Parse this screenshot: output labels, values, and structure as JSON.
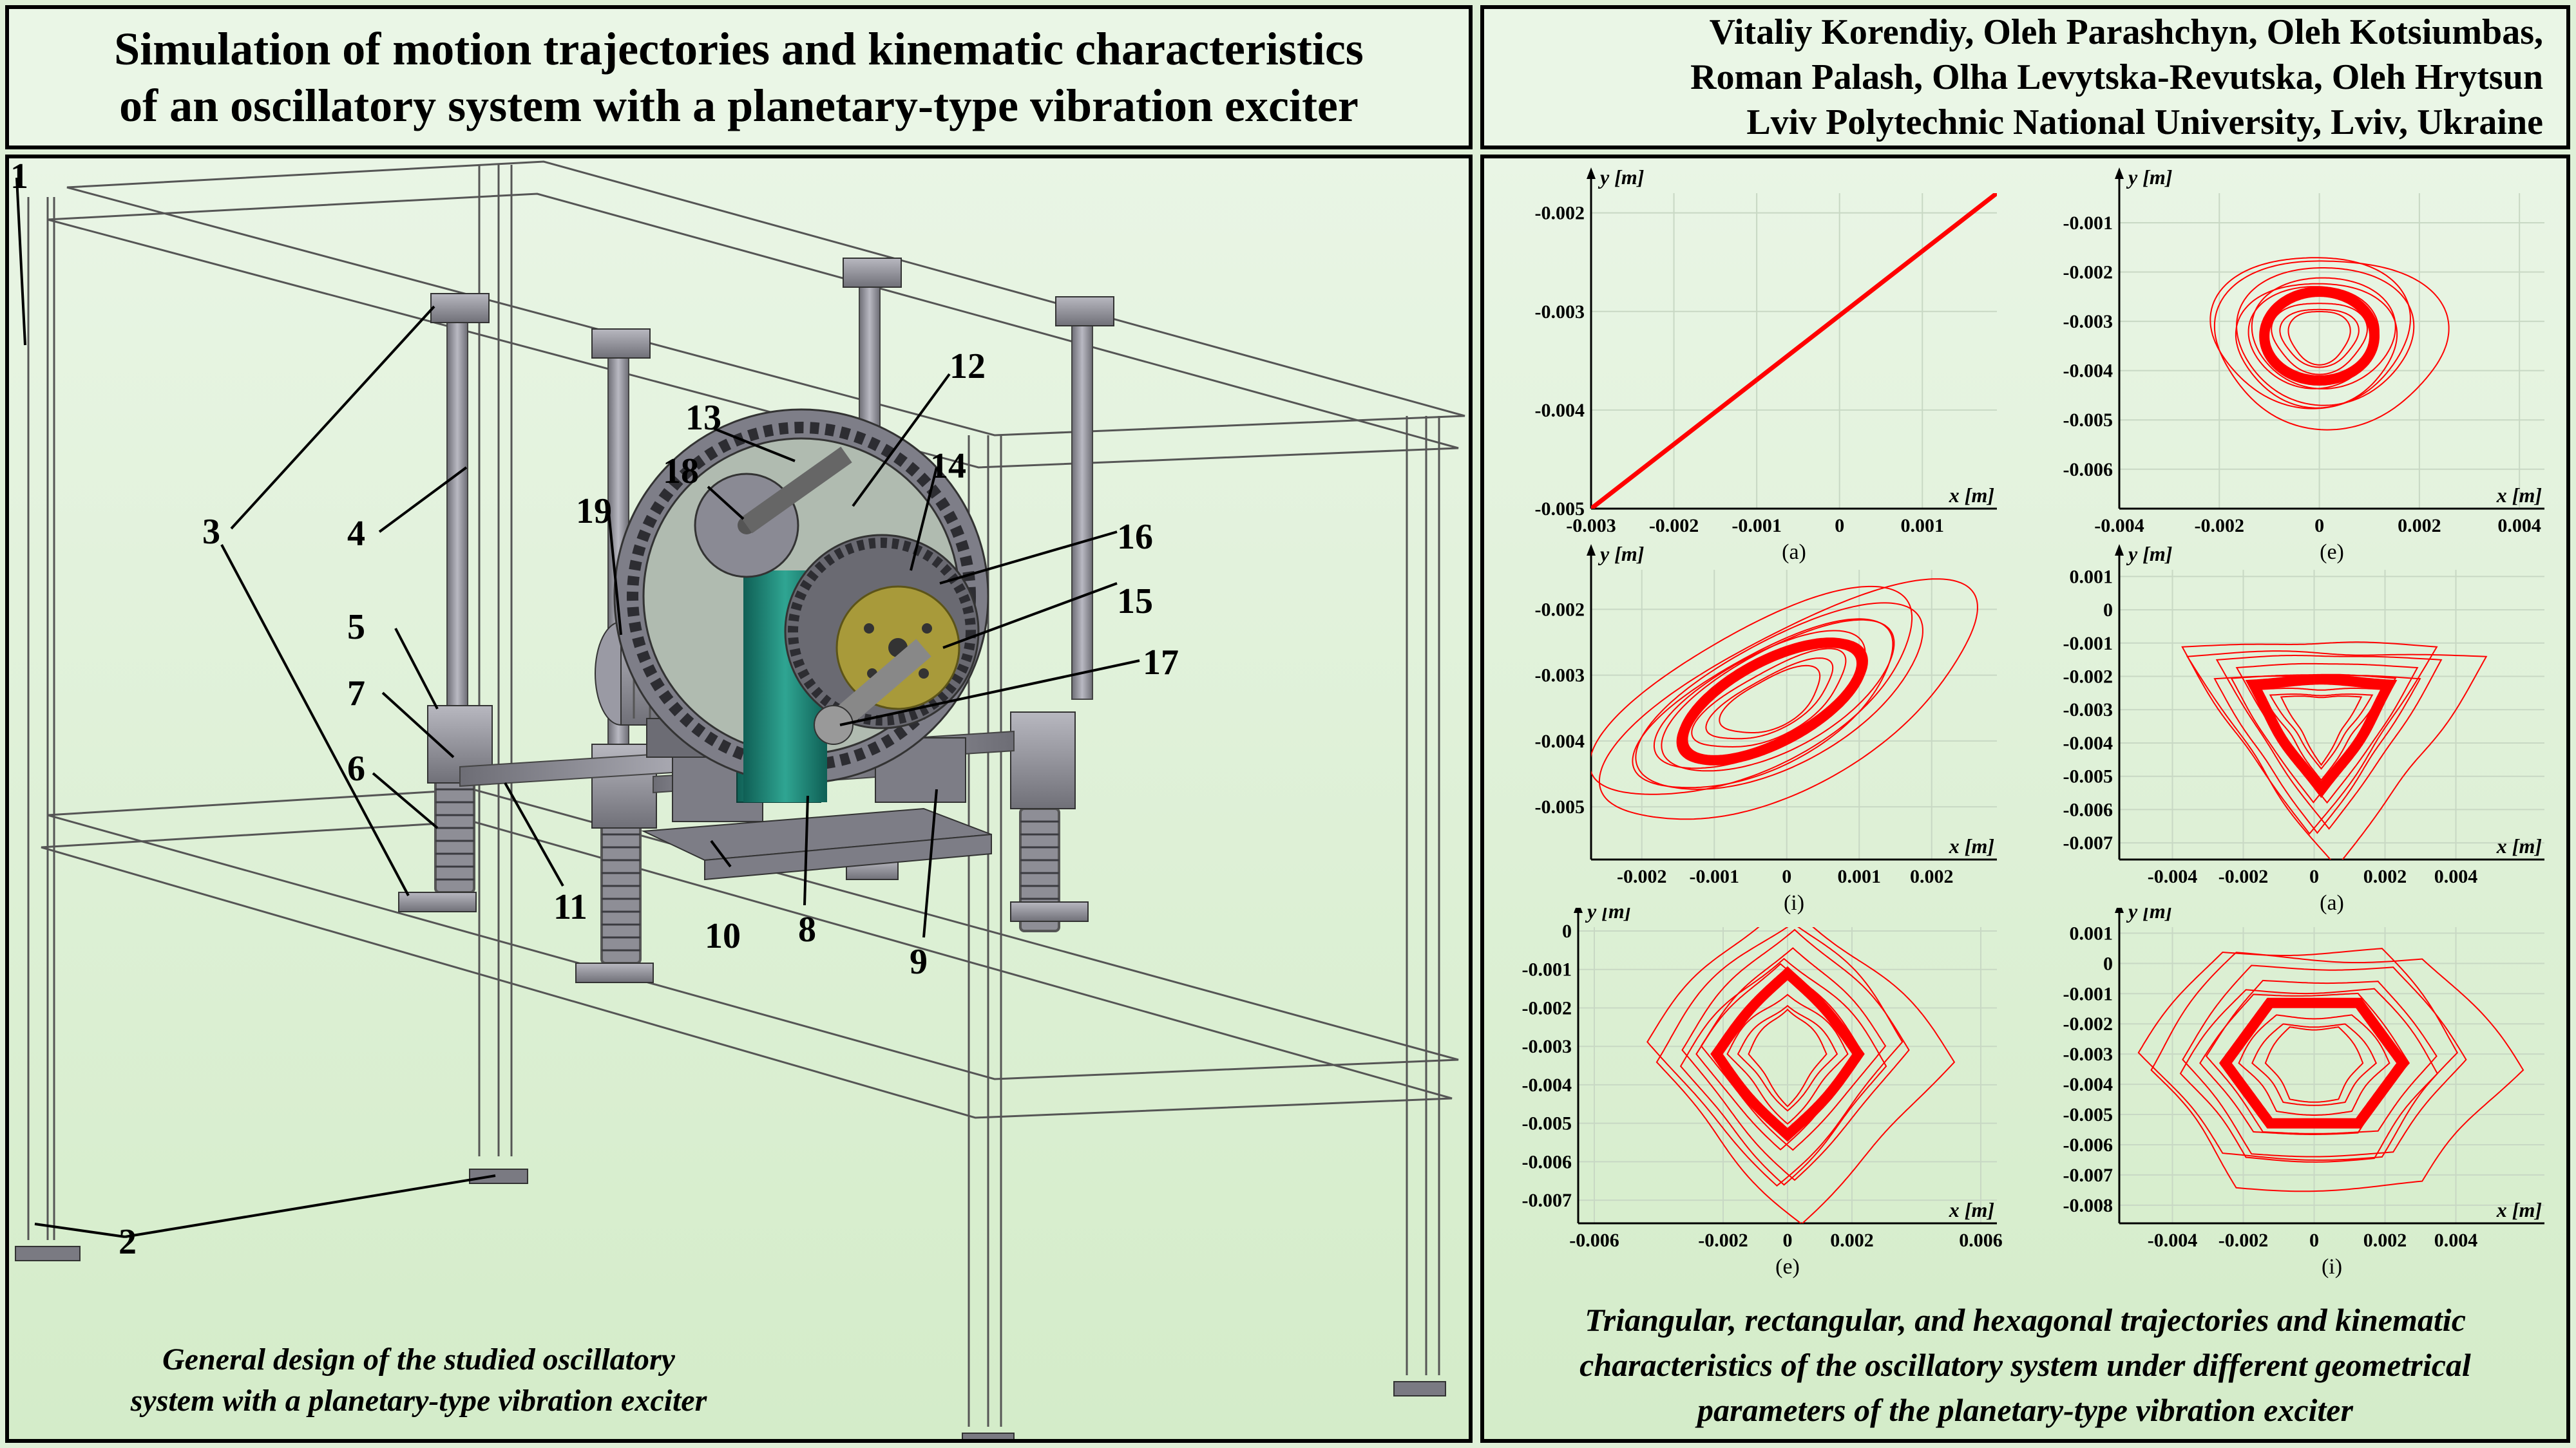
{
  "title": {
    "line1": "Simulation of motion trajectories and kinematic characteristics",
    "line2": "of an oscillatory system with a planetary-type vibration exciter"
  },
  "authors": {
    "line1": "Vitaliy Korendiy, Oleh Parashchyn, Oleh Kotsiumbas,",
    "line2": "Roman Palash, Olha Levytska-Revutska, Oleh Hrytsun",
    "line3": "Lviv Polytechnic National University, Lviv, Ukraine"
  },
  "left_caption": {
    "line1": "General design of the studied oscillatory",
    "line2": "system with a planetary-type vibration exciter"
  },
  "right_caption": {
    "line1": "Triangular, rectangular, and hexagonal trajectories and kinematic",
    "line2": "characteristics of the oscillatory system under different geometrical",
    "line3": "parameters of the planetary-type vibration exciter"
  },
  "callouts": [
    "1",
    "2",
    "3",
    "4",
    "5",
    "6",
    "7",
    "8",
    "9",
    "10",
    "11",
    "12",
    "13",
    "14",
    "15",
    "16",
    "17",
    "18",
    "19"
  ],
  "colors": {
    "trajectory": "#ff0000",
    "grid": "#c8d8c4",
    "frame": "#555555",
    "steel": "#8a8a92",
    "teal": "#1f8a7a",
    "gold": "#a89a3a"
  },
  "chart_data": [
    {
      "type": "line",
      "shape": "line",
      "subfig": "(a)",
      "xlabel": "x [m]",
      "ylabel": "y [m]",
      "xlim": [
        -0.003,
        0.0019
      ],
      "ylim": [
        -0.005,
        -0.0018
      ],
      "xticks": [
        "-0.003",
        "-0.002",
        "-0.001",
        "0",
        "0.001"
      ],
      "yticks": [
        "-0.002",
        "-0.003",
        "-0.004",
        "-0.005"
      ],
      "x": [
        -0.003,
        0.0019
      ],
      "y": [
        -0.005,
        -0.0018
      ]
    },
    {
      "type": "line",
      "shape": "circle",
      "subfig": "(e)",
      "xlabel": "x [m]",
      "ylabel": "y [m]",
      "xlim": [
        -0.004,
        0.0045
      ],
      "ylim": [
        -0.0068,
        -0.0004
      ],
      "xticks": [
        "-0.004",
        "-0.002",
        "0",
        "0.002",
        "0.004"
      ],
      "yticks": [
        "-0.001",
        "-0.002",
        "-0.003",
        "-0.004",
        "-0.005",
        "-0.006"
      ],
      "center": [
        0,
        -0.0033
      ],
      "steady_radius": [
        0.0011,
        0.0009
      ]
    },
    {
      "type": "line",
      "shape": "ellipse",
      "subfig": "(i)",
      "xlabel": "x [m]",
      "ylabel": "y [m]",
      "xlim": [
        -0.0027,
        0.0029
      ],
      "ylim": [
        -0.0058,
        -0.0014
      ],
      "xticks": [
        "-0.002",
        "-0.001",
        "0",
        "0.001",
        "0.002"
      ],
      "yticks": [
        "-0.002",
        "-0.003",
        "-0.004",
        "-0.005"
      ],
      "center": [
        -0.0002,
        -0.0034
      ],
      "steady_radius": [
        0.0014,
        0.0006
      ]
    },
    {
      "type": "line",
      "shape": "triangle",
      "subfig": "(a)",
      "xlabel": "x [m]",
      "ylabel": "y [m]",
      "xlim": [
        -0.0055,
        0.0065
      ],
      "ylim": [
        -0.0075,
        0.0012
      ],
      "xticks": [
        "-0.004",
        "-0.002",
        "0",
        "0.002",
        "0.004"
      ],
      "yticks": [
        "0.001",
        "0",
        "-0.001",
        "-0.002",
        "-0.003",
        "-0.004",
        "-0.005",
        "-0.006",
        "-0.007"
      ],
      "center": [
        0.0002,
        -0.0033
      ],
      "steady_radius": [
        0.0022,
        0.0021
      ]
    },
    {
      "type": "line",
      "shape": "square",
      "subfig": "(e)",
      "xlabel": "x [m]",
      "ylabel": "y [m]",
      "xlim": [
        -0.0065,
        0.0065
      ],
      "ylim": [
        -0.0076,
        0.0001
      ],
      "xticks": [
        "-0.006",
        "-0.002",
        "0",
        "0.002",
        "0.006"
      ],
      "yticks": [
        "0",
        "-0.001",
        "-0.002",
        "-0.003",
        "-0.004",
        "-0.005",
        "-0.006",
        "-0.007"
      ],
      "center": [
        0,
        -0.0032
      ],
      "steady_radius": [
        0.0022,
        0.0021
      ]
    },
    {
      "type": "line",
      "shape": "hexagon",
      "subfig": "(i)",
      "xlabel": "x [m]",
      "ylabel": "y [m]",
      "xlim": [
        -0.0055,
        0.0065
      ],
      "ylim": [
        -0.0086,
        0.0012
      ],
      "xticks": [
        "-0.004",
        "-0.002",
        "0",
        "0.002",
        "0.004"
      ],
      "yticks": [
        "0.001",
        "0",
        "-0.001",
        "-0.002",
        "-0.003",
        "-0.004",
        "-0.005",
        "-0.006",
        "-0.007",
        "-0.008"
      ],
      "center": [
        0,
        -0.0033
      ],
      "steady_radius": [
        0.0025,
        0.0023
      ]
    }
  ]
}
